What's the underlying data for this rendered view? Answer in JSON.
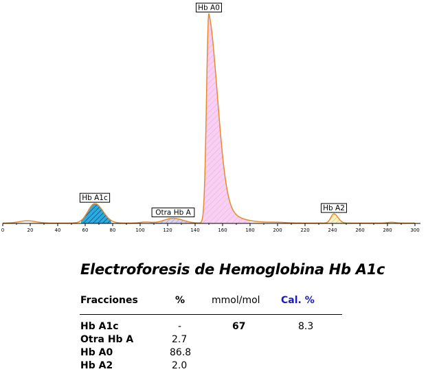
{
  "chart_data": {
    "type": "area",
    "xlim": [
      0,
      300
    ],
    "x_ticks": [
      0,
      20,
      40,
      60,
      80,
      100,
      120,
      140,
      160,
      180,
      200,
      220,
      240,
      260,
      280,
      300
    ],
    "x_tick_labels": [
      "0",
      "20",
      "40",
      "60",
      "80",
      "100",
      "120",
      "140",
      "160",
      "180",
      "200",
      "220",
      "240",
      "260",
      "280",
      "300"
    ],
    "ylim": [
      0,
      100
    ],
    "peaks": [
      {
        "label": "Hb A1c",
        "x": 67,
        "height": 9.3,
        "color": "#27aee0",
        "hatch": "#1a2a70"
      },
      {
        "label": "Otra Hb A",
        "x": 124,
        "height": 2.3,
        "color": "#c9c9ec",
        "hatch": "#7a7ac0"
      },
      {
        "label": "Hb A0",
        "x": 150,
        "height": 100,
        "color": "#f6c6f0",
        "hatch": "#e6a0e0"
      },
      {
        "label": "Hb A2",
        "x": 241,
        "height": 4.4,
        "color": "#f6efc0",
        "hatch": "#d8c060"
      }
    ],
    "line_color": "#e88a2a"
  },
  "results": {
    "title": "Electroforesis de Hemoglobina Hb A1c",
    "headers": {
      "fraction": "Fracciones",
      "percent": "%",
      "mmol": "mmol/mol",
      "cal": "Cal. %"
    },
    "rows": [
      {
        "name": "Hb A1c",
        "percent": "-",
        "mmol": "67",
        "cal": "8.3"
      },
      {
        "name": "Otra Hb A",
        "percent": "2.7",
        "mmol": "",
        "cal": ""
      },
      {
        "name": "Hb A0",
        "percent": "86.8",
        "mmol": "",
        "cal": ""
      },
      {
        "name": "Hb A2",
        "percent": "2.0",
        "mmol": "",
        "cal": ""
      }
    ],
    "cal_header_color": "#1a1ab8"
  }
}
